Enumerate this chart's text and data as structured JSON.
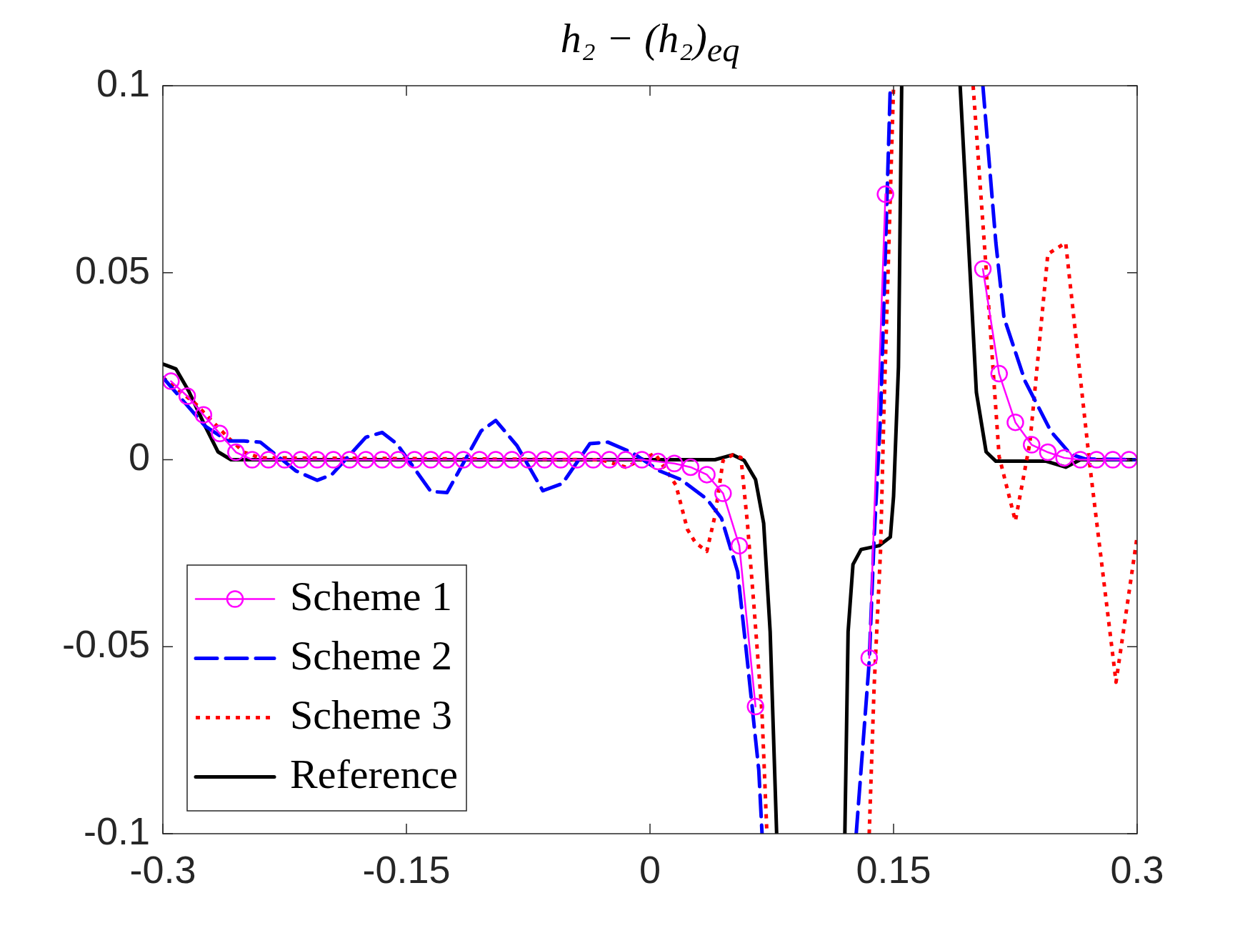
{
  "chart_data": {
    "type": "line",
    "title": "h₂ − (h₂)$_{eq}$",
    "xlim": [
      -0.3,
      0.3
    ],
    "xticks": [
      -0.3,
      -0.15,
      0,
      0.15,
      0.3
    ],
    "ylim": [
      -0.1,
      0.1
    ],
    "yticks": [
      -0.1,
      -0.05,
      0,
      0.05,
      0.1
    ],
    "grid": false,
    "legend": "bottom left",
    "series": [
      {
        "name": "Scheme 1",
        "color": "#ff00ff",
        "marker": "circle",
        "line_style": "solid",
        "x": [
          -0.295,
          -0.285,
          -0.275,
          -0.265,
          -0.255,
          -0.245,
          -0.235,
          -0.225,
          -0.215,
          -0.205,
          -0.195,
          -0.185,
          -0.175,
          -0.165,
          -0.155,
          -0.145,
          -0.135,
          -0.125,
          -0.115,
          -0.105,
          -0.095,
          -0.085,
          -0.075,
          -0.065,
          -0.055,
          -0.045,
          -0.035,
          -0.025,
          -0.015,
          -0.005,
          0.005,
          0.015,
          0.025,
          0.035,
          0.045,
          0.055,
          0.065,
          0.075,
          0.085,
          0.095,
          0.105,
          0.115,
          0.125,
          0.135,
          0.145,
          0.155,
          0.165,
          0.175,
          0.185,
          0.195,
          0.205,
          0.215,
          0.225,
          0.235,
          0.245,
          0.255,
          0.265,
          0.275,
          0.285,
          0.295
        ],
        "values": [
          0.021,
          0.017,
          0.012,
          0.007,
          0.002,
          0,
          0,
          0,
          0,
          0,
          0,
          0,
          0,
          0,
          0,
          0,
          0,
          0,
          0,
          0,
          0,
          0,
          0,
          0,
          0,
          0,
          0,
          0,
          0,
          0,
          -0.0005,
          -0.001,
          -0.002,
          -0.004,
          -0.009,
          -0.023,
          -0.066,
          null,
          null,
          null,
          null,
          null,
          null,
          -0.053,
          0.071,
          null,
          null,
          null,
          null,
          null,
          0.051,
          0.023,
          0.01,
          0.004,
          0.002,
          0.0005,
          0,
          0,
          0,
          0
        ]
      },
      {
        "name": "Scheme 2",
        "color": "#0000ff",
        "marker": "none",
        "line_style": "dashed",
        "x": [
          -0.3,
          -0.274,
          -0.26,
          -0.25,
          -0.24,
          -0.218,
          -0.205,
          -0.196,
          -0.175,
          -0.165,
          -0.156,
          -0.135,
          -0.125,
          -0.104,
          -0.095,
          -0.082,
          -0.066,
          -0.054,
          -0.037,
          -0.026,
          -0.011,
          0.006,
          0.019,
          0.035,
          0.044,
          0.054,
          0.06,
          0.067,
          0.069,
          0.098,
          0.127,
          0.135,
          0.138,
          0.142,
          0.148,
          0.176,
          0.205,
          0.213,
          0.218,
          0.231,
          0.247,
          0.259,
          0.268,
          0.3
        ],
        "values": [
          0.022,
          0.009,
          0.005,
          0.005,
          0.0047,
          -0.003,
          -0.0055,
          -0.004,
          0.006,
          0.0073,
          0.0043,
          -0.0085,
          -0.0088,
          0.0077,
          0.0105,
          0.0038,
          -0.0083,
          -0.0064,
          0.0043,
          0.0047,
          0.0019,
          -0.003,
          -0.0053,
          -0.0105,
          -0.0156,
          -0.03,
          -0.054,
          -0.083,
          -0.1,
          null,
          -0.1,
          -0.054,
          -0.021,
          0.012,
          0.1,
          null,
          0.1,
          0.058,
          0.038,
          0.021,
          0.0075,
          0.0015,
          0.0002,
          0
        ]
      },
      {
        "name": "Scheme 3",
        "color": "#ff0000",
        "marker": "none",
        "line_style": "dotted",
        "x": [
          -0.3,
          -0.28,
          -0.26,
          -0.25,
          -0.24,
          -0.03,
          -0.015,
          0.003,
          0.016,
          0.023,
          0.028,
          0.035,
          0.04,
          0.045,
          0.051,
          0.056,
          0.06,
          0.064,
          0.069,
          0.072,
          0.1,
          0.135,
          0.138,
          0.142,
          0.144,
          0.15,
          0.175,
          0.199,
          0.207,
          0.215,
          0.225,
          0.234,
          0.245,
          0.256,
          0.271,
          0.287,
          0.3
        ],
        "values": [
          0.022,
          0.015,
          0.006,
          0.002,
          0.0005,
          0,
          -0.002,
          0.0017,
          -0.0068,
          -0.0186,
          -0.0222,
          -0.0245,
          -0.015,
          -0.0002,
          0.0013,
          0.0006,
          -0.017,
          -0.039,
          -0.068,
          -0.1,
          null,
          -0.1,
          -0.061,
          -0.024,
          0.012,
          0.1,
          null,
          0.1,
          0.051,
          0.0009,
          -0.0164,
          0.0047,
          0.055,
          0.058,
          -0.002,
          -0.0595,
          -0.0205
        ]
      },
      {
        "name": "Reference",
        "color": "#000000",
        "marker": "none",
        "line_style": "solid",
        "x": [
          -0.3,
          -0.292,
          -0.284,
          -0.274,
          -0.266,
          -0.258,
          0.04,
          0.045,
          0.051,
          0.058,
          0.065,
          0.07,
          0.074,
          0.078,
          0.1,
          0.12,
          0.122,
          0.125,
          0.13,
          0.141,
          0.148,
          0.15,
          0.153,
          0.155,
          0.173,
          0.191,
          0.197,
          0.201,
          0.207,
          0.213,
          0.244,
          0.256,
          0.265,
          0.3
        ],
        "values": [
          0.0256,
          0.0243,
          0.0183,
          0.009,
          0.0021,
          0,
          0,
          0.0006,
          0.0013,
          -0.0002,
          -0.0053,
          -0.017,
          -0.046,
          -0.1,
          null,
          -0.1,
          -0.046,
          -0.028,
          -0.024,
          -0.023,
          -0.0207,
          -0.0098,
          0.0247,
          0.1,
          null,
          0.1,
          0.051,
          0.018,
          0.0021,
          -0.0004,
          -0.0004,
          -0.002,
          0,
          0
        ]
      }
    ]
  }
}
